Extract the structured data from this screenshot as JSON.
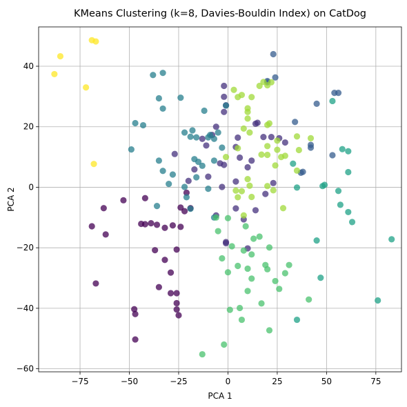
{
  "chart_data": {
    "type": "scatter",
    "title": "KMeans Clustering (k=8, Davies-Bouldin Index) on CatDog",
    "xlabel": "PCA 1",
    "ylabel": "PCA 2",
    "xlim": [
      -96,
      88
    ],
    "ylim": [
      -61,
      53
    ],
    "grid": true,
    "x_ticks": [
      -75,
      -50,
      -25,
      0,
      25,
      50,
      75
    ],
    "y_ticks": [
      -60,
      -40,
      -20,
      0,
      20,
      40
    ],
    "x_tick_labels": [
      "−75",
      "−50",
      "−25",
      "0",
      "25",
      "50",
      "75"
    ],
    "y_tick_labels": [
      "−60",
      "−40",
      "−20",
      "0",
      "20",
      "40"
    ],
    "colormap": "viridis",
    "marker_alpha": 0.75,
    "series": [
      {
        "color": "#440154",
        "points": [
          [
            -47.5,
            -40.3
          ],
          [
            -47,
            -41.9
          ],
          [
            -47,
            -50.3
          ],
          [
            -44,
            -12.1
          ],
          [
            -42,
            -12.2
          ],
          [
            -39,
            -11.9
          ],
          [
            -42,
            -3.6
          ],
          [
            -37,
            -20.8
          ],
          [
            -32,
            -24.0
          ],
          [
            -35,
            -33.0
          ],
          [
            -32,
            -13.4
          ],
          [
            -29,
            -28.2
          ],
          [
            -28,
            -12.6
          ],
          [
            -24,
            -13.1
          ],
          [
            -22,
            -7.9
          ],
          [
            -21,
            -1.8
          ],
          [
            -26,
            -35.0
          ],
          [
            -29,
            -35.0
          ],
          [
            -26,
            -20.6
          ],
          [
            -26,
            -38.3
          ],
          [
            -26,
            -40.4
          ],
          [
            -25,
            -42.3
          ],
          [
            -24,
            -6.7
          ],
          [
            -19,
            -6.9
          ],
          [
            -53,
            -4.3
          ],
          [
            -69,
            -12.9
          ],
          [
            -63,
            -6.9
          ],
          [
            -62,
            -15.6
          ],
          [
            -67,
            -31.8
          ],
          [
            -36,
            -12.4
          ]
        ]
      },
      {
        "color": "#46327e",
        "points": [
          [
            -27,
            11.0
          ],
          [
            -8,
            17.3
          ],
          [
            -6,
            20.0
          ],
          [
            -2,
            24.9
          ],
          [
            -1,
            27.1
          ],
          [
            -2,
            29.9
          ],
          [
            -2,
            33.5
          ],
          [
            -4,
            7.9
          ],
          [
            -2,
            7.4
          ],
          [
            -3,
            0.1
          ],
          [
            4,
            13.3
          ],
          [
            4,
            1.9
          ],
          [
            6,
            9.8
          ],
          [
            12,
            8.8
          ],
          [
            14,
            21.0
          ],
          [
            15,
            21.3
          ],
          [
            18,
            16.6
          ],
          [
            22,
            16.6
          ],
          [
            26,
            16.2
          ],
          [
            29,
            14.8
          ],
          [
            23,
            1.4
          ],
          [
            19,
            -2.2
          ],
          [
            14,
            -7.6
          ],
          [
            8,
            -10.6
          ],
          [
            10,
            -20.2
          ],
          [
            4,
            -7.0
          ],
          [
            -1,
            -18.1
          ],
          [
            -6,
            -9.3
          ],
          [
            -20,
            2.1
          ],
          [
            -17,
            5.9
          ],
          [
            -11,
            13.8
          ],
          [
            -13,
            16.0
          ],
          [
            5,
            16.4
          ],
          [
            -10,
            3.5
          ],
          [
            10,
            6.6
          ],
          [
            -1,
            -18.5
          ]
        ]
      },
      {
        "color": "#365c8d",
        "points": [
          [
            23,
            44.0
          ],
          [
            24,
            36.3
          ],
          [
            20,
            34.7
          ],
          [
            34,
            21.6
          ],
          [
            37,
            4.8
          ],
          [
            42,
            14.0
          ],
          [
            42,
            13.1
          ],
          [
            45,
            27.6
          ],
          [
            53,
            10.6
          ],
          [
            54,
            31.2
          ],
          [
            56,
            31.2
          ],
          [
            38,
            5.1
          ],
          [
            20,
            35.1
          ]
        ]
      },
      {
        "color": "#277f8e",
        "points": [
          [
            -49,
            12.5
          ],
          [
            -47,
            21.2
          ],
          [
            -43,
            20.5
          ],
          [
            -38,
            37.1
          ],
          [
            -35,
            29.4
          ],
          [
            -33,
            37.8
          ],
          [
            -33,
            26.0
          ],
          [
            -35,
            8.8
          ],
          [
            -33,
            5.4
          ],
          [
            -30,
            1.1
          ],
          [
            -22,
            18.1
          ],
          [
            -18,
            18.8
          ],
          [
            -19,
            16.7
          ],
          [
            -16,
            16.5
          ],
          [
            -17,
            9.3
          ],
          [
            -15,
            8.4
          ],
          [
            -13,
            7.1
          ],
          [
            -12,
            25.3
          ],
          [
            -9,
            17.3
          ],
          [
            -10,
            16.5
          ],
          [
            -7,
            16.0
          ],
          [
            -5,
            18.1
          ],
          [
            -3,
            13.1
          ],
          [
            -7,
            8.8
          ],
          [
            -1,
            27.0
          ],
          [
            -10,
            -0.5
          ],
          [
            -16,
            3.3
          ],
          [
            -21,
            -3.3
          ],
          [
            -19,
            -7.1
          ],
          [
            -22,
            0.1
          ],
          [
            -28,
            4.2
          ],
          [
            -24,
            29.6
          ],
          [
            -36,
            -6.2
          ],
          [
            -7,
            -10.0
          ]
        ]
      },
      {
        "color": "#1fa187",
        "points": [
          [
            33,
            7.8
          ],
          [
            35,
            -0.1
          ],
          [
            48,
            0.4
          ],
          [
            49,
            0.8
          ],
          [
            53,
            28.5
          ],
          [
            56,
            -1.2
          ],
          [
            57,
            -5.8
          ],
          [
            58,
            12.6
          ],
          [
            61,
            11.9
          ],
          [
            61,
            5.0
          ],
          [
            61,
            -8.2
          ],
          [
            63,
            -11.5
          ],
          [
            83,
            -17.2
          ],
          [
            76,
            -37.4
          ],
          [
            45,
            -17.6
          ],
          [
            47,
            -29.9
          ],
          [
            35,
            -43.8
          ]
        ]
      },
      {
        "color": "#4ac16d",
        "points": [
          [
            -6,
            -10.0
          ],
          [
            -5,
            -14.5
          ],
          [
            -3,
            -23.5
          ],
          [
            0,
            -10.2
          ],
          [
            2,
            -19.5
          ],
          [
            0,
            -28.1
          ],
          [
            1,
            -40.5
          ],
          [
            5,
            -26.0
          ],
          [
            6,
            -39.9
          ],
          [
            7,
            -43.8
          ],
          [
            9,
            -12.9
          ],
          [
            10,
            -26.9
          ],
          [
            10,
            -34.3
          ],
          [
            12,
            -22.2
          ],
          [
            12,
            -30.2
          ],
          [
            13,
            -17.0
          ],
          [
            16,
            -16.3
          ],
          [
            17,
            -38.4
          ],
          [
            19,
            -25.7
          ],
          [
            21,
            -19.9
          ],
          [
            20,
            -27.1
          ],
          [
            21,
            -47.3
          ],
          [
            24,
            -31.0
          ],
          [
            26,
            -33.6
          ],
          [
            29,
            -28.4
          ],
          [
            31,
            -25.7
          ],
          [
            41,
            -37.1
          ],
          [
            -13,
            -55.2
          ],
          [
            -2,
            -52.0
          ],
          [
            8,
            -20.9
          ]
        ]
      },
      {
        "color": "#a0da39",
        "points": [
          [
            3,
            32.2
          ],
          [
            5,
            29.8
          ],
          [
            7,
            30.5
          ],
          [
            10,
            24.9
          ],
          [
            10,
            22.7
          ],
          [
            10,
            26.1
          ],
          [
            11,
            18.1
          ],
          [
            12,
            29.8
          ],
          [
            16,
            33.5
          ],
          [
            18,
            34.8
          ],
          [
            20,
            33.7
          ],
          [
            20,
            20.6
          ],
          [
            21,
            21.1
          ],
          [
            25,
            15.4
          ],
          [
            24,
            7.2
          ],
          [
            25,
            12.4
          ],
          [
            20,
            13.6
          ],
          [
            20,
            10.7
          ],
          [
            22,
            34.7
          ],
          [
            8,
            19.4
          ],
          [
            17,
            10.8
          ],
          [
            27,
            10.0
          ],
          [
            29,
            10.4
          ],
          [
            35,
            16.8
          ],
          [
            36,
            12.3
          ],
          [
            35,
            5.5
          ],
          [
            42,
            16.2
          ],
          [
            5,
            12.9
          ],
          [
            10,
            2.7
          ],
          [
            11,
            0.5
          ],
          [
            12,
            -3.2
          ],
          [
            20,
            0.4
          ],
          [
            23,
            -1.0
          ],
          [
            28,
            -6.9
          ],
          [
            7,
            -1.3
          ],
          [
            4,
            -1.1
          ],
          [
            5,
            -3.3
          ],
          [
            -1,
            10.0
          ],
          [
            8,
            -9.3
          ]
        ]
      },
      {
        "color": "#fde725",
        "points": [
          [
            -88,
            37.4
          ],
          [
            -85,
            43.3
          ],
          [
            -72,
            33.0
          ],
          [
            -69,
            48.6
          ],
          [
            -67,
            48.2
          ],
          [
            -68,
            7.7
          ]
        ]
      }
    ]
  }
}
